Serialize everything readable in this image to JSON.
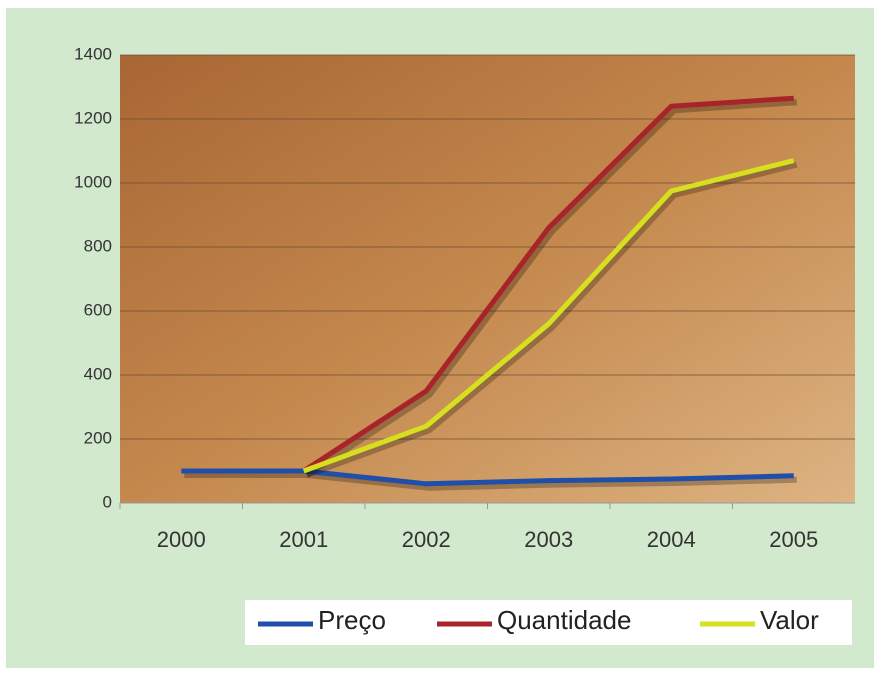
{
  "chart_data": {
    "type": "line",
    "categories": [
      "2000",
      "2001",
      "2002",
      "2003",
      "2004",
      "2005"
    ],
    "series": [
      {
        "name": "Preço",
        "color": "#1f4fa8",
        "values": [
          100,
          100,
          60,
          70,
          75,
          85
        ]
      },
      {
        "name": "Quantidade",
        "color": "#a8232a",
        "values": [
          null,
          100,
          350,
          860,
          1240,
          1265
        ]
      },
      {
        "name": "Valor",
        "color": "#d6e01e",
        "values": [
          null,
          100,
          240,
          560,
          975,
          1070
        ]
      }
    ],
    "ylim": [
      0,
      1400
    ],
    "yticks": [
      0,
      200,
      400,
      600,
      800,
      1000,
      1200,
      1400
    ],
    "grid": true,
    "legend": "bottom-right"
  }
}
